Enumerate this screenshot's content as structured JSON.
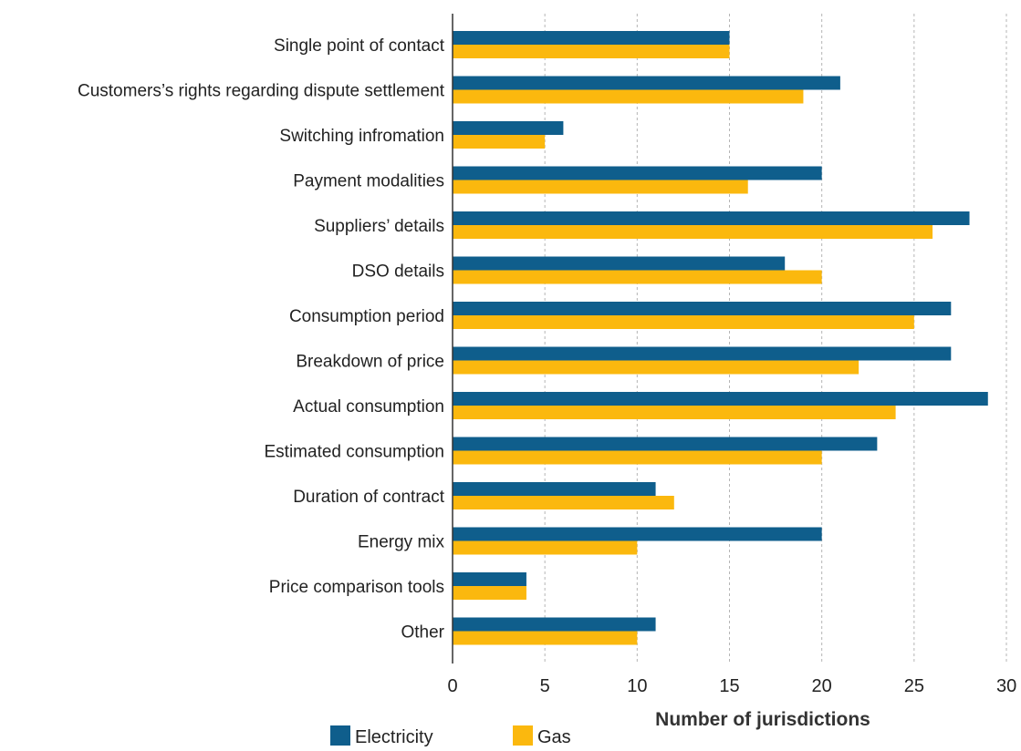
{
  "chart_data": {
    "type": "bar",
    "orientation": "horizontal",
    "title": "",
    "xlabel": "Number of jurisdictions",
    "ylabel": "",
    "xlim": [
      0,
      30
    ],
    "xticks": [
      "0",
      "5",
      "10",
      "15",
      "20",
      "25",
      "30"
    ],
    "grid": "vertical dotted",
    "legend_position": "bottom-left",
    "categories": [
      "Single point of contact",
      "Customers’s rights regarding dispute settlement",
      "Switching infromation",
      "Payment modalities",
      "Suppliers’ details",
      "DSO details",
      "Consumption period",
      "Breakdown of price",
      "Actual consumption",
      "Estimated consumption",
      "Duration of contract",
      "Energy mix",
      "Price comparison tools",
      "Other"
    ],
    "series": [
      {
        "name": "Electricity",
        "color": "#0f5e8c",
        "values": [
          15,
          21,
          6,
          20,
          28,
          18,
          27,
          27,
          29,
          23,
          11,
          20,
          4,
          11
        ]
      },
      {
        "name": "Gas",
        "color": "#fbb80e",
        "values": [
          15,
          19,
          5,
          16,
          26,
          20,
          25,
          22,
          24,
          20,
          12,
          10,
          4,
          10
        ]
      }
    ]
  }
}
